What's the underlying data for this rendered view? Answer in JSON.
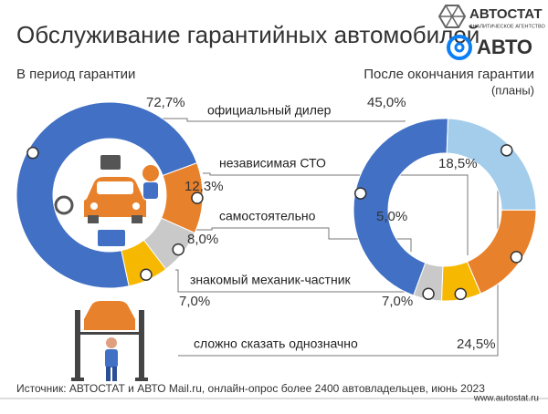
{
  "header": {
    "logo": "АВТОСТАТ",
    "logo_tagline": "АНАЛИТИЧЕСКОЕ АГЕНТСТВО",
    "partner": "АВТО"
  },
  "chart_data": {
    "type": "donut",
    "title": "Обслуживание гарантийных автомобилей",
    "categories": [
      "официальный дилер",
      "независимая СТО",
      "самостоятельно",
      "знакомый механик-частник",
      "сложно сказать однозначно"
    ],
    "colors": [
      "#4170c4",
      "#e8812c",
      "#c9c9c9",
      "#f6b800",
      "#a3cdeb"
    ],
    "series": [
      {
        "name": "В период гарантии",
        "values": [
          72.7,
          12.3,
          8.0,
          7.0,
          null
        ],
        "value_labels": [
          "72,7%",
          "12,3%",
          "8,0%",
          "7,0%",
          null
        ]
      },
      {
        "name": "После окончания гарантии",
        "note": "(планы)",
        "values": [
          45.0,
          18.5,
          5.0,
          7.0,
          24.5
        ],
        "value_labels": [
          "45,0%",
          "18,5%",
          "5,0%",
          "7,0%",
          "24,5%"
        ]
      }
    ]
  },
  "footer": {
    "source": "Источник: АВТОСТАТ и АВТО Mail.ru, онлайн-опрос более 2400 автовладельцев, июнь 2023",
    "url": "www.autostat.ru"
  }
}
